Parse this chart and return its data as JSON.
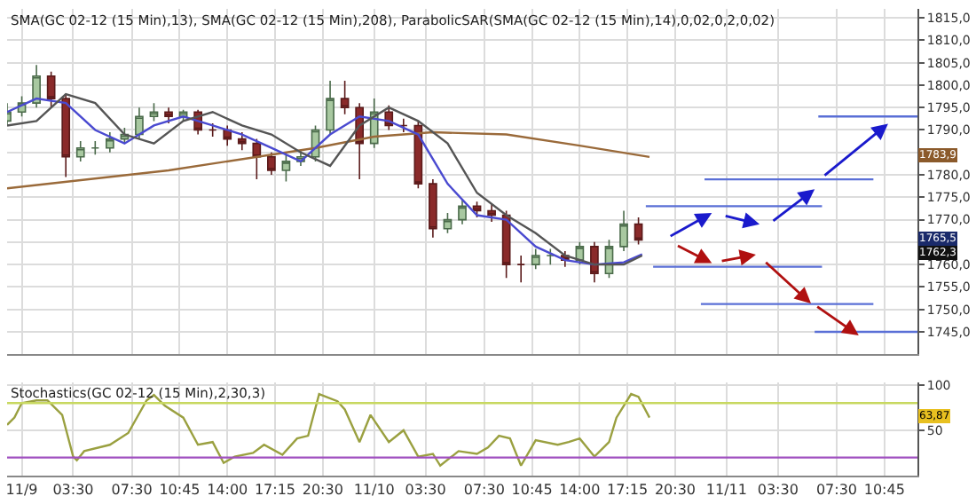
{
  "chart_data": [
    {
      "type": "candlestick",
      "title": "SMA(GC 02-12 (15 Min),13), SMA(GC 02-12 (15 Min),208), ParabolicSAR(SMA(GC 02-12 (15 Min),14),0,02,0,2,0,02)",
      "x": [
        "--11-08T23:00",
        "--11-09T00:00",
        "--11-09T01:00",
        "--11-09T02:00",
        "--11-09T03:00",
        "--11-09T04:00",
        "--11-09T05:00",
        "--11-09T06:00",
        "--11-09T07:00",
        "--11-09T08:00",
        "--11-09T09:00",
        "--11-09T10:00",
        "--11-09T11:00",
        "--11-09T12:00",
        "--11-09T13:00",
        "--11-09T14:00",
        "--11-09T15:00",
        "--11-09T16:00",
        "--11-09T17:00",
        "--11-09T18:00",
        "--11-09T19:00",
        "--11-09T20:00",
        "--11-09T21:00",
        "--11-09T22:00",
        "--11-09T23:00",
        "--11-10T00:00",
        "--11-10T01:00",
        "--11-10T02:00",
        "--11-10T03:00",
        "--11-10T04:00",
        "--11-10T05:00",
        "--11-10T06:00",
        "--11-10T07:00",
        "--11-10T08:00",
        "--11-10T09:00",
        "--11-10T10:00",
        "--11-10T11:00",
        "--11-10T12:00",
        "--11-10T13:00",
        "--11-10T14:00",
        "--11-10T15:00",
        "--11-10T16:00",
        "--11-10T17:00",
        "--11-10T18:00"
      ],
      "ohlc": [
        [
          1792,
          1796,
          1791,
          1794
        ],
        [
          1794,
          1797.5,
          1793,
          1796
        ],
        [
          1796,
          1804.5,
          1795,
          1802
        ],
        [
          1802,
          1803,
          1795,
          1797
        ],
        [
          1797,
          1798,
          1779.5,
          1784
        ],
        [
          1784,
          1787.5,
          1783,
          1786
        ],
        [
          1786,
          1787.5,
          1784.5,
          1786
        ],
        [
          1786,
          1789.5,
          1785,
          1788
        ],
        [
          1788,
          1790.5,
          1787,
          1789
        ],
        [
          1789,
          1795,
          1788,
          1793
        ],
        [
          1793,
          1796,
          1792,
          1794
        ],
        [
          1794,
          1795,
          1791.5,
          1793
        ],
        [
          1793,
          1794.5,
          1792,
          1794
        ],
        [
          1794,
          1794.5,
          1789,
          1790
        ],
        [
          1790,
          1791.5,
          1788.5,
          1790
        ],
        [
          1790,
          1791,
          1786.5,
          1788
        ],
        [
          1788,
          1789.5,
          1785.5,
          1787
        ],
        [
          1787,
          1788,
          1779,
          1784
        ],
        [
          1784,
          1785,
          1780,
          1781
        ],
        [
          1781,
          1784.5,
          1778.5,
          1783
        ],
        [
          1783,
          1785.5,
          1782,
          1784
        ],
        [
          1784,
          1791,
          1783,
          1790
        ],
        [
          1790,
          1801,
          1789,
          1797
        ],
        [
          1797,
          1801,
          1793.5,
          1795
        ],
        [
          1795,
          1796,
          1779,
          1787
        ],
        [
          1787,
          1797,
          1786,
          1794
        ],
        [
          1794,
          1795.5,
          1790,
          1791
        ],
        [
          1791,
          1792.5,
          1789.5,
          1791
        ],
        [
          1791,
          1792,
          1777,
          1778
        ],
        [
          1778,
          1779,
          1766,
          1768
        ],
        [
          1768,
          1771.5,
          1767,
          1770
        ],
        [
          1770,
          1774.5,
          1769,
          1773
        ],
        [
          1773,
          1774,
          1770.5,
          1772
        ],
        [
          1772,
          1773.5,
          1769.5,
          1771
        ],
        [
          1771,
          1772,
          1757,
          1760
        ],
        [
          1760,
          1762,
          1756,
          1760
        ],
        [
          1760,
          1763.5,
          1759,
          1762
        ],
        [
          1762,
          1763.5,
          1760,
          1762
        ],
        [
          1762,
          1763,
          1759.5,
          1761
        ],
        [
          1761,
          1765,
          1760,
          1764
        ],
        [
          1764,
          1765,
          1756,
          1758
        ],
        [
          1758,
          1765.5,
          1757,
          1764
        ],
        [
          1764,
          1772,
          1763,
          1769
        ],
        [
          1769,
          1770.5,
          1764.5,
          1765.5
        ]
      ],
      "series": [
        {
          "type": "line",
          "color": "#9a6a3a",
          "x": [
            "--11-08T23:00",
            "--11-09T10:00",
            "--11-09T20:00",
            "--11-10T00:00",
            "--11-10T04:00",
            "--11-10T09:00",
            "--11-10T14:00",
            "--11-10T18:45"
          ],
          "values": [
            1777,
            1781,
            1786,
            1788.5,
            1789.5,
            1789,
            1786.5,
            1784
          ]
        },
        {
          "type": "line",
          "color": "#4a4ad0",
          "x": [
            "--11-08T23:00",
            "--11-09T01:00",
            "--11-09T03:00",
            "--11-09T05:00",
            "--11-09T07:00",
            "--11-09T09:00",
            "--11-09T11:00",
            "--11-09T13:00",
            "--11-09T15:00",
            "--11-09T17:00",
            "--11-09T19:00",
            "--11-09T21:00",
            "--11-09T23:00",
            "--11-10T01:00",
            "--11-10T03:00",
            "--11-10T05:00",
            "--11-10T07:00",
            "--11-10T09:00",
            "--11-10T11:00",
            "--11-10T13:00",
            "--11-10T15:00",
            "--11-10T17:00",
            "--11-10T18:15"
          ],
          "values": [
            1794,
            1797,
            1796,
            1790,
            1787,
            1791,
            1793,
            1791,
            1789,
            1786,
            1783,
            1789,
            1793,
            1792,
            1789,
            1778,
            1771,
            1770,
            1764,
            1761,
            1760,
            1760.5,
            1762.3
          ]
        },
        {
          "type": "line",
          "color": "#555555",
          "x": [
            "--11-08T23:00",
            "--11-09T01:00",
            "--11-09T03:00",
            "--11-09T05:00",
            "--11-09T07:00",
            "--11-09T09:00",
            "--11-09T11:00",
            "--11-09T13:00",
            "--11-09T15:00",
            "--11-09T17:00",
            "--11-09T19:00",
            "--11-09T21:00",
            "--11-09T23:00",
            "--11-10T01:00",
            "--11-10T03:00",
            "--11-10T05:00",
            "--11-10T07:00",
            "--11-10T09:00",
            "--11-10T11:00",
            "--11-10T13:00",
            "--11-10T15:00",
            "--11-10T17:00",
            "--11-10T18:15"
          ],
          "values": [
            1791,
            1792,
            1798,
            1796,
            1789,
            1787,
            1792,
            1794,
            1791,
            1789,
            1785,
            1782,
            1791,
            1795,
            1792,
            1787,
            1776,
            1771,
            1767,
            1762,
            1760,
            1760,
            1762
          ]
        },
        {
          "type": "line",
          "color": "#5a6fd6",
          "x": [
            "--11-10T18:30",
            "--11-11T06:30"
          ],
          "values": [
            1773,
            1773
          ]
        },
        {
          "type": "line",
          "color": "#5a6fd6",
          "x": [
            "--11-10T22:30",
            "--11-11T10:00"
          ],
          "values": [
            1779,
            1779
          ]
        },
        {
          "type": "line",
          "color": "#5a6fd6",
          "x": [
            "--11-11T06:15",
            "--11-11T13:00"
          ],
          "values": [
            1793,
            1793
          ]
        },
        {
          "type": "line",
          "color": "#5a6fd6",
          "x": [
            "--11-10T19:00",
            "--11-11T06:30"
          ],
          "values": [
            1759.5,
            1759.5
          ]
        },
        {
          "type": "line",
          "color": "#5a6fd6",
          "x": [
            "--11-10T22:15",
            "--11-11T10:00"
          ],
          "values": [
            1751.2,
            1751.2
          ]
        },
        {
          "type": "line",
          "color": "#5a6fd6",
          "x": [
            "--11-11T06:00",
            "--11-11T13:00"
          ],
          "values": [
            1745,
            1745
          ]
        }
      ],
      "annotations": [
        {
          "text": "1783,9",
          "y": 1783.9
        },
        {
          "text": "1765,5",
          "y": 1765.5
        },
        {
          "text": "1762,3",
          "y": 1762.3
        }
      ],
      "xlim": [
        "--11-08T23:00",
        "--11-11T13:00"
      ],
      "xticks": [
        {
          "value": "--11-09T00:00",
          "label": "11/9"
        },
        {
          "value": "--11-09T03:30",
          "label": "03:30"
        },
        {
          "value": "--11-09T07:30",
          "label": "07:30"
        },
        {
          "value": "--11-09T10:45",
          "label": "10:45"
        },
        {
          "value": "--11-09T14:00",
          "label": "14:00"
        },
        {
          "value": "--11-09T17:15",
          "label": "17:15"
        },
        {
          "value": "--11-09T20:30",
          "label": "20:30"
        },
        {
          "value": "--11-10T00:00",
          "label": "11/10"
        },
        {
          "value": "--11-10T03:30",
          "label": "03:30"
        },
        {
          "value": "--11-10T07:30",
          "label": "07:30"
        },
        {
          "value": "--11-10T10:45",
          "label": "10:45"
        },
        {
          "value": "--11-10T14:00",
          "label": "14:00"
        },
        {
          "value": "--11-10T17:15",
          "label": "17:15"
        },
        {
          "value": "--11-10T20:30",
          "label": "20:30"
        },
        {
          "value": "--11-11T00:00",
          "label": "11/11"
        },
        {
          "value": "--11-11T03:30",
          "label": "03:30"
        },
        {
          "value": "--11-11T07:30",
          "label": "07:30"
        },
        {
          "value": "--11-11T10:45",
          "label": "10:45"
        }
      ],
      "ylim": [
        1740,
        1817
      ],
      "yticks": [
        {
          "value": 1745,
          "label": "1745,0"
        },
        {
          "value": 1750,
          "label": "1750,0"
        },
        {
          "value": 1755,
          "label": "1755,0"
        },
        {
          "value": 1760,
          "label": "1760,0"
        },
        {
          "value": 1765,
          "label": null
        },
        {
          "value": 1770,
          "label": "1770,0"
        },
        {
          "value": 1775,
          "label": "1775,0"
        },
        {
          "value": 1780,
          "label": "1780,0"
        },
        {
          "value": 1785,
          "label": null
        },
        {
          "value": 1790,
          "label": "1790,0"
        },
        {
          "value": 1795,
          "label": "1795,0"
        },
        {
          "value": 1800,
          "label": "1800,0"
        },
        {
          "value": 1805,
          "label": "1805,0"
        },
        {
          "value": 1810,
          "label": "1810,0"
        },
        {
          "value": 1815,
          "label": "1815,0"
        }
      ],
      "tick_labels": "y",
      "grid": true
    },
    {
      "type": "line",
      "title": "Stochastics(GC 02-12 (15 Min),2,30,3)",
      "color": "#9aa040",
      "x": [
        "--11-08T23:00",
        "--11-08T23:30",
        "--11-09T00:00",
        "--11-09T01:00",
        "--11-09T01:45",
        "--11-09T02:45",
        "--11-09T03:30",
        "--11-09T03:45",
        "--11-09T04:15",
        "--11-09T06:00",
        "--11-09T07:15",
        "--11-09T08:30",
        "--11-09T09:00",
        "--11-09T09:45",
        "--11-09T11:00",
        "--11-09T12:00",
        "--11-09T13:00",
        "--11-09T13:45",
        "--11-09T14:30",
        "--11-09T15:45",
        "--11-09T16:30",
        "--11-09T17:45",
        "--11-09T18:45",
        "--11-09T19:30",
        "--11-09T20:15",
        "--11-09T21:30",
        "--11-09T22:00",
        "--11-09T23:00",
        "--11-09T23:45",
        "--11-10T01:00",
        "--11-10T02:00",
        "--11-10T03:00",
        "--11-10T04:00",
        "--11-10T04:30",
        "--11-10T05:45",
        "--11-10T07:00",
        "--11-10T07:45",
        "--11-10T08:30",
        "--11-10T09:15",
        "--11-10T10:00",
        "--11-10T11:00",
        "--11-10T12:30",
        "--11-10T13:15",
        "--11-10T14:00",
        "--11-10T15:00",
        "--11-10T16:00",
        "--11-10T16:30",
        "--11-10T17:30",
        "--11-10T18:00",
        "--11-10T18:45"
      ],
      "values": [
        56,
        64,
        80,
        83,
        83,
        67,
        21,
        17,
        27,
        34,
        47,
        83,
        89,
        77,
        64,
        34,
        37,
        14,
        21,
        25,
        34,
        23,
        41,
        44,
        90,
        82,
        73,
        37,
        67,
        37,
        50,
        21,
        24,
        11,
        27,
        24,
        31,
        44,
        41,
        11,
        39,
        34,
        37,
        41,
        21,
        37,
        64,
        90,
        87,
        64
      ],
      "ref_lines": [
        {
          "axis": "y",
          "value": 80,
          "color": "#c8d860"
        },
        {
          "axis": "y",
          "value": 20,
          "color": "#a050c0"
        }
      ],
      "annotations": [
        {
          "text": "63,87",
          "y": 63.87
        }
      ],
      "xlim": [
        "--11-08T23:00",
        "--11-11T13:00"
      ],
      "xticks": [
        {
          "value": "--11-09T00:00",
          "label": "11/9"
        },
        {
          "value": "--11-09T03:30",
          "label": "03:30"
        },
        {
          "value": "--11-09T07:30",
          "label": "07:30"
        },
        {
          "value": "--11-09T10:45",
          "label": "10:45"
        },
        {
          "value": "--11-09T14:00",
          "label": "14:00"
        },
        {
          "value": "--11-09T17:15",
          "label": "17:15"
        },
        {
          "value": "--11-09T20:30",
          "label": "20:30"
        },
        {
          "value": "--11-10T00:00",
          "label": "11/10"
        },
        {
          "value": "--11-10T03:30",
          "label": "03:30"
        },
        {
          "value": "--11-10T07:30",
          "label": "07:30"
        },
        {
          "value": "--11-10T10:45",
          "label": "10:45"
        },
        {
          "value": "--11-10T14:00",
          "label": "14:00"
        },
        {
          "value": "--11-10T17:15",
          "label": "17:15"
        },
        {
          "value": "--11-10T20:30",
          "label": "20:30"
        },
        {
          "value": "--11-11T00:00",
          "label": "11/11"
        },
        {
          "value": "--11-11T03:30",
          "label": "03:30"
        },
        {
          "value": "--11-11T07:30",
          "label": "07:30"
        },
        {
          "value": "--11-11T10:45",
          "label": "10:45"
        }
      ],
      "ylim": [
        0,
        103
      ],
      "yticks": [
        50,
        100
      ],
      "grid": true
    }
  ]
}
